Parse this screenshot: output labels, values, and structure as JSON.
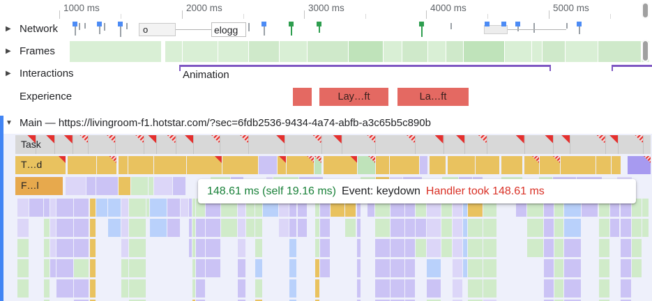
{
  "icons": {
    "collapsed": "▶",
    "expanded": "▼"
  },
  "ruler": {
    "ticks": [
      "1000 ms",
      "2000 ms",
      "3000 ms",
      "4000 ms",
      "5000 ms"
    ]
  },
  "tracks": {
    "network": {
      "label": "Network",
      "chip_o": "o",
      "chip_elogg": "elogg"
    },
    "frames": {
      "label": "Frames"
    },
    "interactions": {
      "label": "Interactions",
      "annotation": "Animation"
    },
    "experience": {
      "label": "Experience",
      "blocks": [
        "Lay…ft",
        "La…ft"
      ]
    },
    "main": {
      "label": "Main — https://livingroom-f1.hotstar.com/?sec=6fdb2536-9434-4a74-abfb-a3c65b5c890b",
      "rows": {
        "task": "Task",
        "scripting": "T…d",
        "function": "F…l"
      }
    }
  },
  "tooltip": {
    "timing": "148.61 ms (self 19.16 ms)",
    "event": "Event: keydown",
    "warning": "Handler took 148.61 ms"
  },
  "colors": {
    "accent_blue": "#4285f4",
    "warning_red": "#e4302e",
    "warning_hatch_light": "#f6d3d1",
    "experience_red": "#e46962",
    "interactions_purple": "#7e57c2",
    "task_gray": "#d8d8d8",
    "scripting_yellow": "#e9c25f",
    "function_orange": "#e7a94d",
    "purple_block": "#a79af0",
    "frames_green_light": "#d9efd5",
    "frames_green_mid": "#cfe9ca",
    "frames_green_dark": "#bfe3ba",
    "net_gray": "#9aa0a6",
    "net_blue": "#4c8bf5",
    "net_green": "#2e9e4f",
    "tooltip_green": "#188038",
    "tooltip_red": "#d93025",
    "flame_palette": [
      "#cbc3f5",
      "#d0ebc9",
      "#dcd6f8",
      "#b9d1fb",
      "#e9c25f"
    ]
  }
}
